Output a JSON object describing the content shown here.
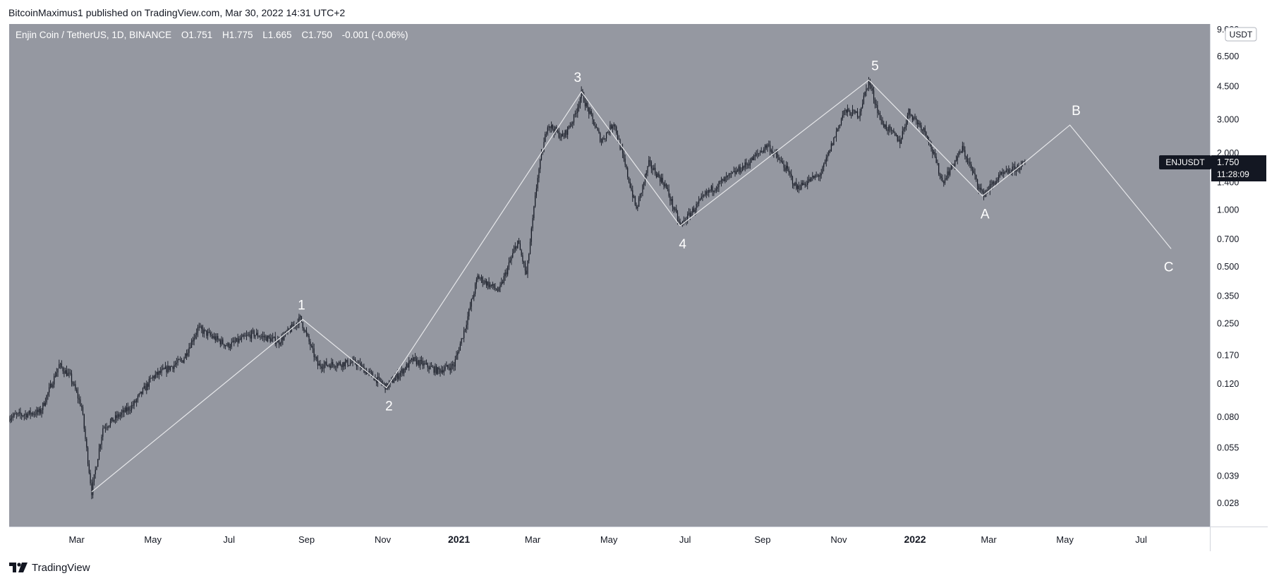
{
  "header": {
    "published_line": "BitcoinMaximus1 published on TradingView.com, Mar 30, 2022 14:31 UTC+2"
  },
  "legend": {
    "pair": "Enjin Coin / TetherUS, 1D, BINANCE",
    "open_label": "O",
    "open": "1.751",
    "high_label": "H",
    "high": "1.775",
    "low_label": "L",
    "low": "1.665",
    "close_label": "C",
    "close": "1.750",
    "change": "-0.001 (-0.06%)"
  },
  "price_tag": {
    "symbol": "ENJUSDT",
    "price": "1.750",
    "countdown": "11:28:09"
  },
  "footer": {
    "brand": "TradingView"
  },
  "colors": {
    "plot_bg": "#9598a1",
    "candle": "#131722",
    "wave_line": "#e6e7ea",
    "label": "#ffffff",
    "axis_bg": "#ffffff",
    "axis_text": "#131722",
    "tag_bg": "#131722"
  },
  "chart_data": {
    "type": "line",
    "subtype": "candlestick-daily",
    "title": "Enjin Coin / TetherUS, 1D, BINANCE",
    "x_axis": {
      "tick_labels": [
        "Mar",
        "May",
        "Jul",
        "Sep",
        "Nov",
        "2021",
        "Mar",
        "May",
        "Jul",
        "Sep",
        "Nov",
        "2022",
        "Mar",
        "May",
        "Jul"
      ],
      "tick_dates": [
        "2020-03-01",
        "2020-05-01",
        "2020-07-01",
        "2020-09-01",
        "2020-11-01",
        "2021-01-01",
        "2021-03-01",
        "2021-05-01",
        "2021-07-01",
        "2021-09-01",
        "2021-11-01",
        "2022-01-01",
        "2022-03-01",
        "2022-05-01",
        "2022-07-01"
      ],
      "range": [
        "2020-01-07",
        "2022-08-25"
      ]
    },
    "y_axis": {
      "scale": "log",
      "unit": "USDT",
      "tick_labels": [
        "9.000",
        "6.500",
        "4.500",
        "3.000",
        "2.000",
        "1.400",
        "1.000",
        "0.700",
        "0.500",
        "0.350",
        "0.250",
        "0.170",
        "0.120",
        "0.080",
        "0.055",
        "0.039",
        "0.028"
      ],
      "range": [
        0.021,
        9.6
      ]
    },
    "price_anchors": [
      {
        "date": "2020-01-07",
        "price": 0.08
      },
      {
        "date": "2020-02-01",
        "price": 0.085
      },
      {
        "date": "2020-02-16",
        "price": 0.15
      },
      {
        "date": "2020-02-25",
        "price": 0.13
      },
      {
        "date": "2020-03-05",
        "price": 0.09
      },
      {
        "date": "2020-03-13",
        "price": 0.032
      },
      {
        "date": "2020-03-22",
        "price": 0.07
      },
      {
        "date": "2020-04-15",
        "price": 0.092
      },
      {
        "date": "2020-05-01",
        "price": 0.13
      },
      {
        "date": "2020-05-25",
        "price": 0.16
      },
      {
        "date": "2020-06-06",
        "price": 0.235
      },
      {
        "date": "2020-06-30",
        "price": 0.19
      },
      {
        "date": "2020-07-20",
        "price": 0.22
      },
      {
        "date": "2020-08-10",
        "price": 0.2
      },
      {
        "date": "2020-08-27",
        "price": 0.265
      },
      {
        "date": "2020-09-10",
        "price": 0.15
      },
      {
        "date": "2020-10-10",
        "price": 0.155
      },
      {
        "date": "2020-11-04",
        "price": 0.115
      },
      {
        "date": "2020-11-25",
        "price": 0.16
      },
      {
        "date": "2020-12-15",
        "price": 0.14
      },
      {
        "date": "2020-12-28",
        "price": 0.15
      },
      {
        "date": "2021-01-06",
        "price": 0.24
      },
      {
        "date": "2021-01-16",
        "price": 0.44
      },
      {
        "date": "2021-02-02",
        "price": 0.37
      },
      {
        "date": "2021-02-17",
        "price": 0.68
      },
      {
        "date": "2021-02-24",
        "price": 0.45
      },
      {
        "date": "2021-03-05",
        "price": 1.5
      },
      {
        "date": "2021-03-13",
        "price": 2.85
      },
      {
        "date": "2021-03-25",
        "price": 2.4
      },
      {
        "date": "2021-04-03",
        "price": 3.05
      },
      {
        "date": "2021-04-09",
        "price": 4.1
      },
      {
        "date": "2021-04-25",
        "price": 2.3
      },
      {
        "date": "2021-05-05",
        "price": 2.9
      },
      {
        "date": "2021-05-23",
        "price": 1.0
      },
      {
        "date": "2021-06-02",
        "price": 1.75
      },
      {
        "date": "2021-06-15",
        "price": 1.35
      },
      {
        "date": "2021-06-27",
        "price": 0.82
      },
      {
        "date": "2021-07-20",
        "price": 1.25
      },
      {
        "date": "2021-08-20",
        "price": 1.75
      },
      {
        "date": "2021-09-05",
        "price": 2.2
      },
      {
        "date": "2021-09-21",
        "price": 1.6
      },
      {
        "date": "2021-09-28",
        "price": 1.3
      },
      {
        "date": "2021-10-18",
        "price": 1.55
      },
      {
        "date": "2021-11-05",
        "price": 3.3
      },
      {
        "date": "2021-11-17",
        "price": 3.2
      },
      {
        "date": "2021-11-25",
        "price": 4.8
      },
      {
        "date": "2021-12-05",
        "price": 2.9
      },
      {
        "date": "2021-12-20",
        "price": 2.3
      },
      {
        "date": "2021-12-27",
        "price": 3.3
      },
      {
        "date": "2022-01-10",
        "price": 2.55
      },
      {
        "date": "2022-01-23",
        "price": 1.4
      },
      {
        "date": "2022-02-08",
        "price": 2.1
      },
      {
        "date": "2022-02-24",
        "price": 1.2
      },
      {
        "date": "2022-03-10",
        "price": 1.5
      },
      {
        "date": "2022-03-30",
        "price": 1.75
      }
    ],
    "wave_path": [
      {
        "date": "2020-03-13",
        "price": 0.032
      },
      {
        "date": "2020-08-29",
        "price": 0.262
      },
      {
        "date": "2020-11-04",
        "price": 0.114
      },
      {
        "date": "2021-04-09",
        "price": 4.2
      },
      {
        "date": "2021-06-27",
        "price": 0.82
      },
      {
        "date": "2021-11-25",
        "price": 4.85
      },
      {
        "date": "2022-02-24",
        "price": 1.18
      },
      {
        "date": "2022-03-30",
        "price": 1.78
      },
      {
        "date": "2022-05-05",
        "price": 2.8
      },
      {
        "date": "2022-07-25",
        "price": 0.62
      }
    ],
    "wave_labels": [
      {
        "text": "1",
        "date": "2020-08-28",
        "price": 0.262,
        "pos": "above"
      },
      {
        "text": "2",
        "date": "2020-11-06",
        "price": 0.114,
        "pos": "below"
      },
      {
        "text": "3",
        "date": "2021-04-06",
        "price": 4.2,
        "pos": "above"
      },
      {
        "text": "4",
        "date": "2021-06-29",
        "price": 0.82,
        "pos": "below"
      },
      {
        "text": "5",
        "date": "2021-11-30",
        "price": 4.85,
        "pos": "above"
      },
      {
        "text": "A",
        "date": "2022-02-26",
        "price": 1.18,
        "pos": "below"
      },
      {
        "text": "B",
        "date": "2022-05-10",
        "price": 2.8,
        "pos": "above"
      },
      {
        "text": "C",
        "date": "2022-07-23",
        "price": 0.62,
        "pos": "below"
      }
    ]
  }
}
